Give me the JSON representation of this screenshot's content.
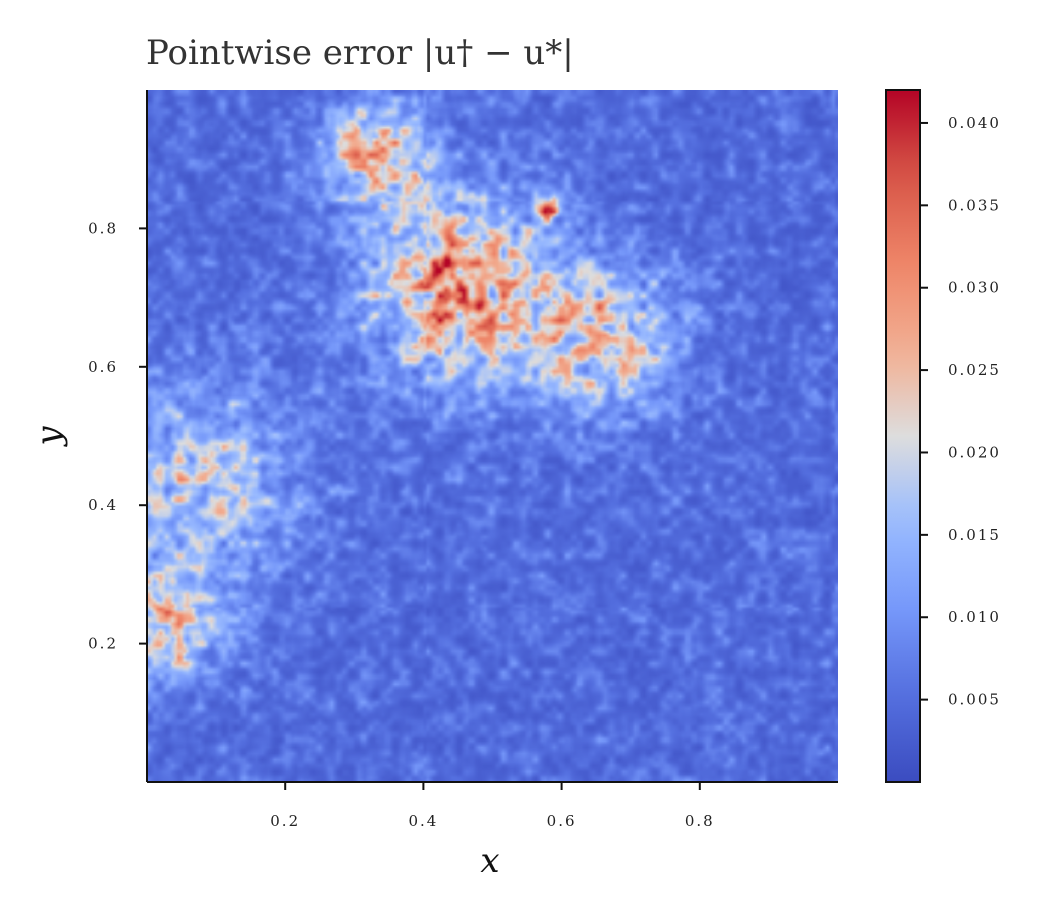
{
  "chart_data": {
    "type": "heatmap",
    "title": "Pointwise error |u† − u*|",
    "xlabel": "x",
    "ylabel": "y",
    "xlim": [
      0,
      1
    ],
    "ylim": [
      0,
      1
    ],
    "x_ticks": [
      0.2,
      0.4,
      0.6,
      0.8
    ],
    "y_ticks": [
      0.2,
      0.4,
      0.6,
      0.8
    ],
    "x_tick_labels": [
      "0.2",
      "0.4",
      "0.6",
      "0.8"
    ],
    "y_tick_labels": [
      "0.2",
      "0.4",
      "0.6",
      "0.8"
    ],
    "colormap": "coolwarm",
    "colorbar": {
      "range": [
        0.0,
        0.042
      ],
      "ticks": [
        0.005,
        0.01,
        0.015,
        0.02,
        0.025,
        0.03,
        0.035,
        0.04
      ],
      "tick_labels": [
        "0.005",
        "0.010",
        "0.015",
        "0.020",
        "0.025",
        "0.030",
        "0.035",
        "0.040"
      ]
    },
    "hotspots": [
      {
        "x": 0.45,
        "y": 0.72,
        "value": 0.038,
        "spread": 0.09
      },
      {
        "x": 0.33,
        "y": 0.91,
        "value": 0.031,
        "spread": 0.05
      },
      {
        "x": 0.66,
        "y": 0.64,
        "value": 0.027,
        "spread": 0.07
      },
      {
        "x": 0.03,
        "y": 0.22,
        "value": 0.028,
        "spread": 0.05
      },
      {
        "x": 0.07,
        "y": 0.42,
        "value": 0.022,
        "spread": 0.1
      },
      {
        "x": 0.58,
        "y": 0.83,
        "value": 0.037,
        "spread": 0.012
      }
    ],
    "grid": false
  },
  "colors": {
    "low": "#3b4cc0",
    "mid": "#dddddd",
    "high": "#b40426"
  }
}
